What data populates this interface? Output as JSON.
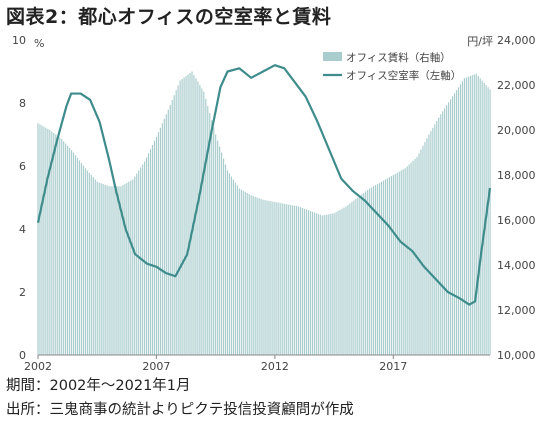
{
  "title": "図表2：都心オフィスの空室率と賃料",
  "footer": {
    "period": "期間：2002年～2021年1月",
    "source": "出所：三鬼商事の統計よりピクテ投信投資顧問が作成"
  },
  "chart_data": {
    "type": "bar+line",
    "left_axis": {
      "unit": "%",
      "ticks": [
        "0",
        "2",
        "4",
        "6",
        "8",
        "10"
      ],
      "range": [
        0,
        10
      ]
    },
    "right_axis": {
      "unit": "円/坪",
      "ticks": [
        "10,000",
        "12,000",
        "14,000",
        "16,000",
        "18,000",
        "20,000",
        "22,000",
        "24,000"
      ],
      "range": [
        10000,
        24000
      ]
    },
    "x_ticks": [
      {
        "label": "2002",
        "year": 2002
      },
      {
        "label": "2007",
        "year": 2007
      },
      {
        "label": "2012",
        "year": 2012
      },
      {
        "label": "2017",
        "year": 2017
      }
    ],
    "x_range": [
      2002.0,
      2021.08
    ],
    "legend": [
      {
        "name": "オフィス賃料（右軸）",
        "kind": "bar",
        "color": "#a9cccd"
      },
      {
        "name": "オフィス空室率（左軸）",
        "kind": "line",
        "color": "#3f8c8c"
      }
    ],
    "rent_series": {
      "name": "オフィス賃料（右軸）",
      "points": [
        [
          2002.0,
          20300
        ],
        [
          2002.5,
          20000
        ],
        [
          2003.0,
          19600
        ],
        [
          2003.5,
          19000
        ],
        [
          2004.0,
          18300
        ],
        [
          2004.5,
          17700
        ],
        [
          2005.0,
          17500
        ],
        [
          2005.5,
          17500
        ],
        [
          2006.0,
          17800
        ],
        [
          2006.5,
          18600
        ],
        [
          2007.0,
          19700
        ],
        [
          2007.5,
          20900
        ],
        [
          2008.0,
          22200
        ],
        [
          2008.5,
          22600
        ],
        [
          2009.0,
          21700
        ],
        [
          2009.5,
          19800
        ],
        [
          2010.0,
          18200
        ],
        [
          2010.5,
          17400
        ],
        [
          2011.0,
          17100
        ],
        [
          2011.5,
          16900
        ],
        [
          2012.0,
          16800
        ],
        [
          2012.5,
          16700
        ],
        [
          2013.0,
          16600
        ],
        [
          2013.5,
          16400
        ],
        [
          2014.0,
          16200
        ],
        [
          2014.5,
          16300
        ],
        [
          2015.0,
          16600
        ],
        [
          2015.5,
          17000
        ],
        [
          2016.0,
          17400
        ],
        [
          2016.5,
          17700
        ],
        [
          2017.0,
          18000
        ],
        [
          2017.5,
          18300
        ],
        [
          2018.0,
          18800
        ],
        [
          2018.5,
          19800
        ],
        [
          2019.0,
          20700
        ],
        [
          2019.5,
          21500
        ],
        [
          2020.0,
          22300
        ],
        [
          2020.5,
          22500
        ],
        [
          2021.08,
          21800
        ]
      ]
    },
    "vacancy_series": {
      "name": "オフィス空室率（左軸）",
      "points": [
        [
          2002.0,
          4.2
        ],
        [
          2002.4,
          5.6
        ],
        [
          2002.8,
          6.8
        ],
        [
          2003.2,
          7.9
        ],
        [
          2003.4,
          8.3
        ],
        [
          2003.8,
          8.3
        ],
        [
          2004.2,
          8.1
        ],
        [
          2004.6,
          7.4
        ],
        [
          2005.0,
          6.2
        ],
        [
          2005.3,
          5.2
        ],
        [
          2005.7,
          4.0
        ],
        [
          2006.1,
          3.2
        ],
        [
          2006.6,
          2.9
        ],
        [
          2007.0,
          2.8
        ],
        [
          2007.4,
          2.6
        ],
        [
          2007.8,
          2.5
        ],
        [
          2008.3,
          3.2
        ],
        [
          2008.8,
          5.0
        ],
        [
          2009.3,
          7.0
        ],
        [
          2009.7,
          8.5
        ],
        [
          2010.0,
          9.0
        ],
        [
          2010.5,
          9.1
        ],
        [
          2011.0,
          8.8
        ],
        [
          2011.5,
          9.0
        ],
        [
          2012.0,
          9.2
        ],
        [
          2012.4,
          9.1
        ],
        [
          2012.8,
          8.7
        ],
        [
          2013.3,
          8.2
        ],
        [
          2013.8,
          7.4
        ],
        [
          2014.3,
          6.5
        ],
        [
          2014.8,
          5.6
        ],
        [
          2015.3,
          5.2
        ],
        [
          2015.8,
          4.9
        ],
        [
          2016.3,
          4.5
        ],
        [
          2016.8,
          4.1
        ],
        [
          2017.3,
          3.6
        ],
        [
          2017.8,
          3.3
        ],
        [
          2018.3,
          2.8
        ],
        [
          2018.8,
          2.4
        ],
        [
          2019.3,
          2.0
        ],
        [
          2019.8,
          1.8
        ],
        [
          2020.2,
          1.6
        ],
        [
          2020.45,
          1.7
        ],
        [
          2020.7,
          3.2
        ],
        [
          2021.08,
          5.3
        ]
      ]
    }
  }
}
